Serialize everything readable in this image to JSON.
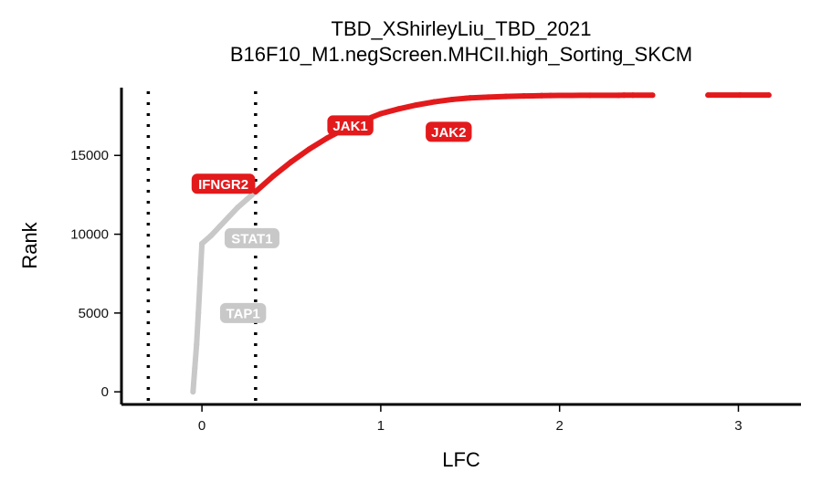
{
  "chart_data": {
    "type": "scatter",
    "title": "TBD_XShirleyLiu_TBD_2021",
    "subtitle": "B16F10_M1.negScreen.MHCII.high_Sorting_SKCM",
    "xlabel": "LFC",
    "ylabel": "Rank",
    "xlim": [
      -0.45,
      3.35
    ],
    "ylim": [
      -800,
      19300
    ],
    "x_ticks": [
      0,
      1,
      2,
      3
    ],
    "y_ticks": [
      0,
      5000,
      10000,
      15000
    ],
    "x_tick_labels": [
      "0",
      "1",
      "2",
      "3"
    ],
    "y_tick_labels": [
      "0",
      "5000",
      "10000",
      "15000"
    ],
    "grid": false,
    "legend": "none",
    "threshold_lines": [
      -0.3,
      0.3
    ],
    "colors": {
      "hit": "#e31a1c",
      "background": "#c8c8c8",
      "threshold": "#000000"
    },
    "series": [
      {
        "color": "#c8c8c8",
        "points": [
          [
            -0.05,
            0
          ],
          [
            -0.04,
            1500
          ],
          [
            -0.03,
            3000
          ],
          [
            -0.02,
            5000
          ],
          [
            -0.01,
            7200
          ],
          [
            0,
            9400
          ],
          [
            0.05,
            9900
          ],
          [
            0.1,
            10500
          ],
          [
            0.15,
            11100
          ],
          [
            0.2,
            11700
          ],
          [
            0.25,
            12200
          ],
          [
            0.3,
            12700
          ]
        ]
      },
      {
        "color": "#e31a1c",
        "points": [
          [
            0.3,
            12700
          ],
          [
            0.4,
            13700
          ],
          [
            0.5,
            14600
          ],
          [
            0.6,
            15400
          ],
          [
            0.7,
            16100
          ],
          [
            0.8,
            16700
          ],
          [
            0.9,
            17200
          ],
          [
            1.0,
            17650
          ],
          [
            1.1,
            17950
          ],
          [
            1.2,
            18200
          ],
          [
            1.3,
            18400
          ],
          [
            1.4,
            18550
          ],
          [
            1.5,
            18650
          ],
          [
            1.6,
            18700
          ],
          [
            1.7,
            18740
          ],
          [
            1.8,
            18770
          ],
          [
            1.85,
            18780
          ],
          [
            1.9,
            18790
          ],
          [
            1.95,
            18800
          ],
          [
            2.0,
            18805
          ],
          [
            2.03,
            18808
          ],
          [
            2.07,
            18810
          ],
          [
            2.17,
            18815
          ],
          [
            2.33,
            18818
          ],
          [
            2.36,
            18820
          ],
          [
            2.41,
            18822
          ],
          [
            2.52,
            18825
          ],
          [
            2.83,
            18828
          ],
          [
            3.01,
            18830
          ],
          [
            3.17,
            18832
          ]
        ]
      }
    ],
    "labels": [
      {
        "text": "IFNGR2",
        "x": 0.12,
        "y": 13200,
        "color": "#e31a1c"
      },
      {
        "text": "JAK1",
        "x": 0.83,
        "y": 16900,
        "color": "#e31a1c"
      },
      {
        "text": "JAK2",
        "x": 1.38,
        "y": 16500,
        "color": "#e31a1c"
      },
      {
        "text": "STAT1",
        "x": 0.28,
        "y": 9750,
        "color": "#c8c8c8"
      },
      {
        "text": "TAP1",
        "x": 0.23,
        "y": 5000,
        "color": "#c8c8c8"
      }
    ]
  }
}
